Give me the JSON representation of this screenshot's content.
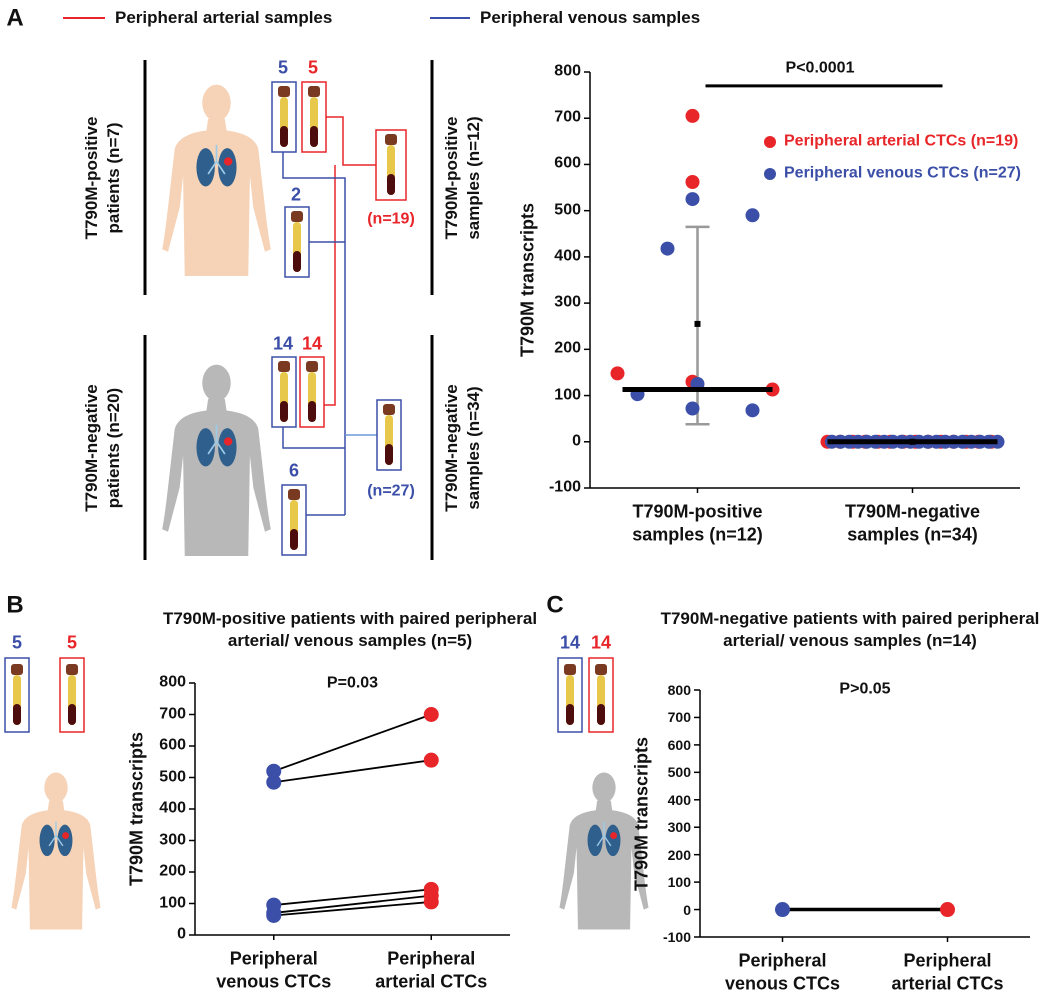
{
  "panel_labels": [
    "A",
    "B",
    "C"
  ],
  "legend_lines": [
    {
      "name": "Peripheral arterial samples",
      "color": "#e8262a"
    },
    {
      "name": "Peripheral venous samples",
      "color": "#3c4fa8"
    }
  ],
  "diagram": {
    "left_labels": [
      "T790M-positive patients (n=7)",
      "T790M-negative patients (n=20)"
    ],
    "right_labels": [
      "T790M-positive samples (n=12)",
      "T790M-negative samples (n=34)"
    ],
    "counts": [
      "5",
      "5",
      "2",
      "14",
      "14",
      "6"
    ],
    "totals": [
      "(n=19)",
      "(n=27)"
    ],
    "b_counts": [
      "5",
      "5"
    ],
    "c_counts": [
      "14",
      "14"
    ]
  },
  "chart_data": [
    {
      "type": "scatter",
      "categories": [
        "T790M-positive samples (n=12)",
        "T790M-negative samples (n=34)"
      ],
      "y_label": "T790M transcripts",
      "annotation": "P<0.0001",
      "series": [
        {
          "name": "Peripheral arterial CTCs (n=19)",
          "color": "#e8262a",
          "values": [
            [
              705,
              562,
              148,
              130,
              113
            ],
            [
              0,
              0,
              0,
              0,
              0,
              0,
              0,
              0,
              0,
              0,
              0,
              0,
              0,
              0
            ]
          ]
        },
        {
          "name": "Peripheral venous CTCs (n=27)",
          "color": "#3c4fa8",
          "values": [
            [
              525,
              490,
              418,
              103,
              72,
              68,
              125
            ],
            [
              0,
              0,
              0,
              0,
              0,
              0,
              0,
              0,
              0,
              0,
              0,
              0,
              0,
              0,
              0,
              0,
              0,
              0,
              0,
              0
            ]
          ]
        }
      ],
      "summary": [
        {
          "median": 113,
          "mean": 255,
          "sd_low": 38,
          "sd_high": 465
        },
        {
          "median": 0,
          "mean": 0,
          "sd_low": 0,
          "sd_high": 0
        }
      ],
      "ylim": [
        -100,
        800
      ],
      "yticks": [
        -100,
        0,
        100,
        200,
        300,
        400,
        500,
        600,
        700,
        800
      ]
    },
    {
      "type": "line",
      "title": "T790M-positive patients with paired peripheral arterial/ venous samples (n=5)",
      "categories": [
        "Peripheral venous CTCs",
        "Peripheral arterial CTCs"
      ],
      "y_label": "T790M transcripts",
      "annotation": "P=0.03",
      "point_colors": [
        "#3c4fa8",
        "#e8262a"
      ],
      "pairs": [
        [
          520,
          700
        ],
        [
          485,
          555
        ],
        [
          95,
          145
        ],
        [
          70,
          125
        ],
        [
          62,
          105
        ]
      ],
      "ylim": [
        0,
        800
      ],
      "yticks": [
        0,
        100,
        200,
        300,
        400,
        500,
        600,
        700,
        800
      ]
    },
    {
      "type": "line",
      "title": "T790M-negative patients with paired peripheral arterial/ venous samples (n=14)",
      "categories": [
        "Peripheral venous CTCs",
        "Peripheral arterial CTCs"
      ],
      "y_label": "T790M transcripts",
      "annotation": "P>0.05",
      "point_colors": [
        "#3c4fa8",
        "#e8262a"
      ],
      "pairs": [
        [
          0,
          0
        ]
      ],
      "ylim": [
        -100,
        800
      ],
      "yticks": [
        -100,
        0,
        100,
        200,
        300,
        400,
        500,
        600,
        700,
        800
      ]
    }
  ]
}
